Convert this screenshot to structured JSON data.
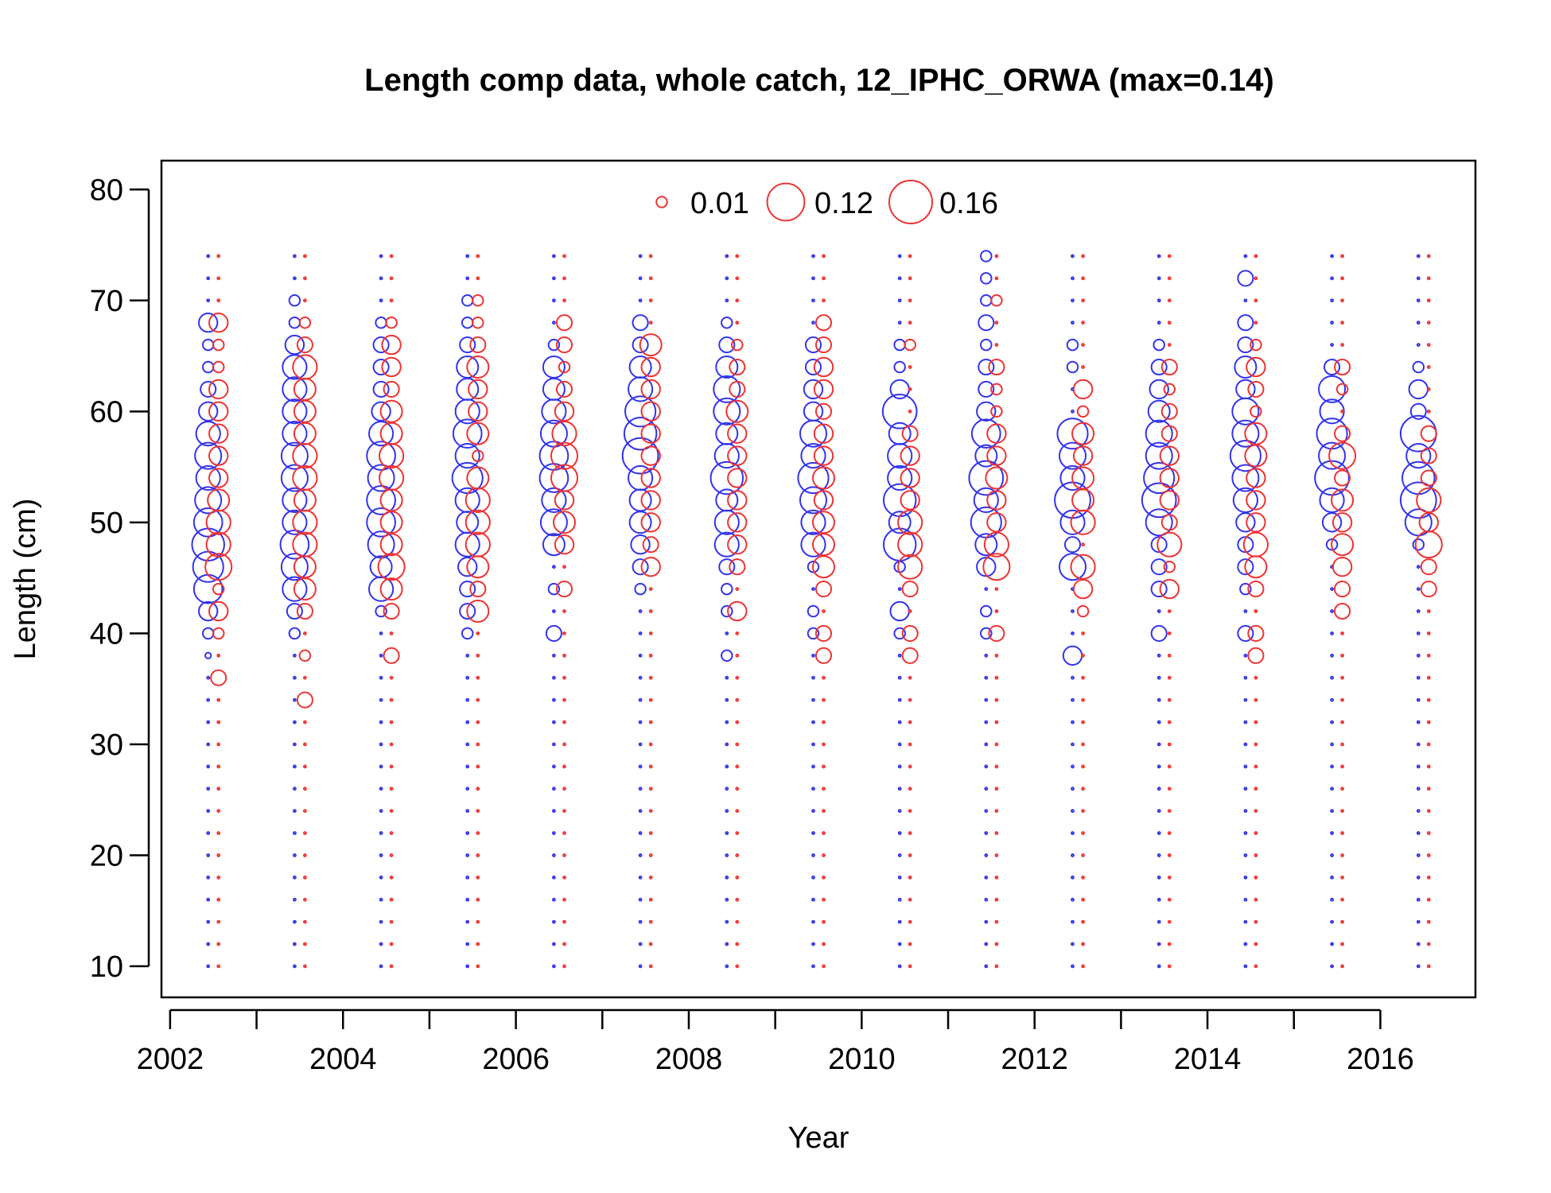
{
  "chart_data": {
    "type": "scatter",
    "title": "Length comp data, whole catch, 12_IPHC_ORWA (max=0.14)",
    "xlabel": "Year",
    "ylabel": "Length (cm)",
    "xlim": [
      2001.9,
      2017.1
    ],
    "ylim": [
      7.2,
      82.6
    ],
    "x_ticks": [
      2002,
      2004,
      2006,
      2008,
      2010,
      2012,
      2014,
      2016
    ],
    "x_minor_ticks": [
      2003,
      2005,
      2007,
      2009,
      2011,
      2013,
      2015
    ],
    "y_ticks": [
      10,
      20,
      30,
      40,
      50,
      60,
      70,
      80
    ],
    "grid": false,
    "legend_position": "top",
    "legend": [
      {
        "label": "0.01",
        "value": 0.01
      },
      {
        "label": "0.12",
        "value": 0.12
      },
      {
        "label": "0.16",
        "value": 0.16
      }
    ],
    "colors": {
      "observed": "#3333ee",
      "expected": "#ee3333"
    },
    "max_value": 0.14,
    "years": [
      2002,
      2003,
      2004,
      2005,
      2006,
      2007,
      2008,
      2009,
      2010,
      2011,
      2012,
      2013,
      2014,
      2015,
      2016
    ],
    "length_bins": [
      10,
      12,
      14,
      16,
      18,
      20,
      22,
      24,
      26,
      28,
      30,
      32,
      34,
      36,
      38,
      40,
      42,
      44,
      46,
      48,
      50,
      52,
      54,
      56,
      58,
      60,
      62,
      64,
      66,
      68,
      70,
      72,
      74
    ],
    "series": [
      {
        "name": "observed",
        "color": "#3333ee",
        "values": [
          [
            0,
            0,
            0,
            0,
            0,
            0,
            0,
            0,
            0,
            0,
            0,
            0,
            0,
            0,
            0.003,
            0.01,
            0.03,
            0.07,
            0.08,
            0.09,
            0.07,
            0.06,
            0.05,
            0.06,
            0.05,
            0.03,
            0.02,
            0.01,
            0.01,
            0.03,
            0,
            0,
            0
          ],
          [
            0,
            0,
            0,
            0,
            0,
            0,
            0,
            0,
            0,
            0,
            0,
            0,
            0,
            0,
            0,
            0.01,
            0.02,
            0.05,
            0.06,
            0.07,
            0.05,
            0.05,
            0.06,
            0.06,
            0.05,
            0.05,
            0.05,
            0.05,
            0.03,
            0.01,
            0.01,
            0,
            0
          ],
          [
            0,
            0,
            0,
            0,
            0,
            0,
            0,
            0,
            0,
            0,
            0,
            0,
            0,
            0,
            0,
            0,
            0.01,
            0.05,
            0.04,
            0.06,
            0.07,
            0.07,
            0.06,
            0.07,
            0.05,
            0.03,
            0.02,
            0.02,
            0.02,
            0.01,
            0,
            0,
            0
          ],
          [
            0,
            0,
            0,
            0,
            0,
            0,
            0,
            0,
            0,
            0,
            0,
            0,
            0,
            0,
            0,
            0.01,
            0.02,
            0.02,
            0.03,
            0.05,
            0.04,
            0.05,
            0.08,
            0.05,
            0.07,
            0.05,
            0.04,
            0.04,
            0.02,
            0.01,
            0.01,
            0,
            0
          ],
          [
            0,
            0,
            0,
            0,
            0,
            0,
            0,
            0,
            0,
            0,
            0,
            0,
            0,
            0,
            0,
            0.02,
            0,
            0.01,
            0,
            0.04,
            0.06,
            0.05,
            0.07,
            0.07,
            0.06,
            0.05,
            0.04,
            0.04,
            0.01,
            0,
            0,
            0,
            0
          ],
          [
            0,
            0,
            0,
            0,
            0,
            0,
            0,
            0,
            0,
            0,
            0,
            0,
            0,
            0,
            0,
            0,
            0,
            0.01,
            0.02,
            0.03,
            0.04,
            0.04,
            0.05,
            0.11,
            0.09,
            0.08,
            0.05,
            0.04,
            0.02,
            0.02,
            0,
            0,
            0
          ],
          [
            0,
            0,
            0,
            0,
            0,
            0,
            0,
            0,
            0,
            0,
            0,
            0,
            0,
            0,
            0.01,
            0,
            0.01,
            0.01,
            0.02,
            0.05,
            0.05,
            0.04,
            0.09,
            0.05,
            0.04,
            0.06,
            0.06,
            0.04,
            0.02,
            0.01,
            0,
            0,
            0
          ],
          [
            0,
            0,
            0,
            0,
            0,
            0,
            0,
            0,
            0,
            0,
            0,
            0,
            0,
            0,
            0,
            0.01,
            0.01,
            0,
            0.01,
            0.05,
            0.05,
            0.06,
            0.08,
            0.05,
            0.06,
            0.03,
            0.03,
            0.02,
            0.02,
            0,
            0,
            0,
            0
          ],
          [
            0,
            0,
            0,
            0,
            0,
            0,
            0,
            0,
            0,
            0,
            0,
            0,
            0,
            0,
            0,
            0.01,
            0.03,
            0,
            0.01,
            0.09,
            0.04,
            0.09,
            0.05,
            0.05,
            0.04,
            0.1,
            0.03,
            0.01,
            0.01,
            0,
            0,
            0,
            0
          ],
          [
            0,
            0,
            0,
            0,
            0,
            0,
            0,
            0,
            0,
            0,
            0,
            0,
            0,
            0,
            0,
            0.01,
            0.01,
            0,
            0.03,
            0.04,
            0.08,
            0.05,
            0.1,
            0.04,
            0.07,
            0.03,
            0.02,
            0.02,
            0.01,
            0.02,
            0.01,
            0.01,
            0.01
          ],
          [
            0,
            0,
            0,
            0,
            0,
            0,
            0,
            0,
            0,
            0,
            0,
            0,
            0,
            0,
            0.03,
            0,
            0,
            0,
            0.06,
            0.02,
            0.05,
            0.11,
            0.05,
            0.06,
            0.08,
            0,
            0,
            0.01,
            0.01,
            0,
            0,
            0,
            0
          ],
          [
            0,
            0,
            0,
            0,
            0,
            0,
            0,
            0,
            0,
            0,
            0,
            0,
            0,
            0,
            0,
            0.02,
            0,
            0.02,
            0.02,
            0.02,
            0.06,
            0.1,
            0.08,
            0.06,
            0.06,
            0.04,
            0.03,
            0.02,
            0.01,
            0,
            0,
            0,
            0
          ],
          [
            0,
            0,
            0,
            0,
            0,
            0,
            0,
            0,
            0,
            0,
            0,
            0,
            0,
            0,
            0,
            0.02,
            0,
            0.01,
            0.02,
            0.02,
            0.03,
            0.05,
            0.06,
            0.08,
            0.06,
            0.06,
            0.03,
            0.04,
            0.02,
            0.02,
            0,
            0.02,
            0
          ],
          [
            0,
            0,
            0,
            0,
            0,
            0,
            0,
            0,
            0,
            0,
            0,
            0,
            0,
            0,
            0,
            0,
            0,
            0,
            0,
            0.01,
            0.03,
            0.05,
            0.1,
            0.06,
            0.08,
            0.05,
            0.06,
            0.02,
            0,
            0,
            0,
            0,
            0
          ],
          [
            0,
            0,
            0,
            0,
            0,
            0,
            0,
            0,
            0,
            0,
            0,
            0,
            0,
            0,
            0,
            0,
            0,
            0,
            0,
            0.01,
            0.06,
            0.11,
            0.09,
            0.05,
            0.11,
            0.02,
            0.03,
            0.01,
            0,
            0,
            0,
            0,
            0
          ]
        ]
      },
      {
        "name": "expected",
        "color": "#ee3333",
        "values": [
          [
            0,
            0,
            0,
            0,
            0,
            0,
            0,
            0,
            0,
            0,
            0,
            0,
            0,
            0.02,
            0,
            0.01,
            0.03,
            0.01,
            0.06,
            0.05,
            0.05,
            0.04,
            0.03,
            0.03,
            0.03,
            0.03,
            0.03,
            0.01,
            0.01,
            0.03,
            0,
            0,
            0
          ],
          [
            0,
            0,
            0,
            0,
            0,
            0,
            0,
            0,
            0,
            0,
            0,
            0,
            0.02,
            0,
            0.01,
            0,
            0.02,
            0.04,
            0.04,
            0.05,
            0.05,
            0.04,
            0.05,
            0.05,
            0.04,
            0.04,
            0.04,
            0.05,
            0.02,
            0.01,
            0,
            0,
            0
          ],
          [
            0,
            0,
            0,
            0,
            0,
            0,
            0,
            0,
            0,
            0,
            0,
            0,
            0,
            0,
            0.02,
            0,
            0.02,
            0.04,
            0.06,
            0.04,
            0.04,
            0.04,
            0.05,
            0.05,
            0.04,
            0.04,
            0.02,
            0.03,
            0.03,
            0.01,
            0,
            0,
            0
          ],
          [
            0,
            0,
            0,
            0,
            0,
            0,
            0,
            0,
            0,
            0,
            0,
            0,
            0,
            0,
            0,
            0,
            0.04,
            0.02,
            0.04,
            0.05,
            0.05,
            0.05,
            0.04,
            0.01,
            0.04,
            0.03,
            0.03,
            0.04,
            0.02,
            0.01,
            0.01,
            0,
            0
          ],
          [
            0,
            0,
            0,
            0,
            0,
            0,
            0,
            0,
            0,
            0,
            0,
            0,
            0,
            0,
            0,
            0,
            0,
            0.02,
            0,
            0.03,
            0.04,
            0.03,
            0.06,
            0.06,
            0.05,
            0.03,
            0.02,
            0.01,
            0.02,
            0.02,
            0,
            0,
            0
          ],
          [
            0,
            0,
            0,
            0,
            0,
            0,
            0,
            0,
            0,
            0,
            0,
            0,
            0,
            0,
            0,
            0,
            0,
            0,
            0.03,
            0.02,
            0.03,
            0.03,
            0.03,
            0.03,
            0.03,
            0.03,
            0.03,
            0.03,
            0.04,
            0,
            0,
            0,
            0
          ],
          [
            0,
            0,
            0,
            0,
            0,
            0,
            0,
            0,
            0,
            0,
            0,
            0,
            0,
            0,
            0,
            0,
            0.03,
            0,
            0.02,
            0.03,
            0.03,
            0.03,
            0.03,
            0.03,
            0.03,
            0.04,
            0.02,
            0.02,
            0.01,
            0,
            0,
            0,
            0
          ],
          [
            0,
            0,
            0,
            0,
            0,
            0,
            0,
            0,
            0,
            0,
            0,
            0,
            0,
            0,
            0.02,
            0.02,
            0,
            0.02,
            0.04,
            0.04,
            0.04,
            0.03,
            0.04,
            0.03,
            0.03,
            0.02,
            0.03,
            0.03,
            0.02,
            0.02,
            0,
            0,
            0
          ],
          [
            0,
            0,
            0,
            0,
            0,
            0,
            0,
            0,
            0,
            0,
            0,
            0,
            0,
            0,
            0.02,
            0.02,
            0,
            0.02,
            0.05,
            0.05,
            0.05,
            0.03,
            0.03,
            0.03,
            0.02,
            0,
            0,
            0,
            0.01,
            0,
            0,
            0,
            0
          ],
          [
            0,
            0,
            0,
            0,
            0,
            0,
            0,
            0,
            0,
            0,
            0,
            0,
            0,
            0,
            0,
            0.02,
            0,
            0,
            0.06,
            0.05,
            0.03,
            0.03,
            0.04,
            0.03,
            0.03,
            0.01,
            0.01,
            0.02,
            0,
            0,
            0.01,
            0,
            0
          ],
          [
            0,
            0,
            0,
            0,
            0,
            0,
            0,
            0,
            0,
            0,
            0,
            0,
            0,
            0,
            0,
            0,
            0.01,
            0.03,
            0.05,
            0,
            0.05,
            0.04,
            0.04,
            0.03,
            0.04,
            0.01,
            0.03,
            0,
            0,
            0,
            0,
            0,
            0
          ],
          [
            0,
            0,
            0,
            0,
            0,
            0,
            0,
            0,
            0,
            0,
            0,
            0,
            0,
            0,
            0,
            0,
            0,
            0.03,
            0.01,
            0.05,
            0.02,
            0.03,
            0.03,
            0.03,
            0.02,
            0.02,
            0.01,
            0.02,
            0,
            0,
            0,
            0,
            0
          ],
          [
            0,
            0,
            0,
            0,
            0,
            0,
            0,
            0,
            0,
            0,
            0,
            0,
            0,
            0,
            0.02,
            0.02,
            0,
            0.02,
            0.04,
            0.05,
            0.03,
            0.03,
            0.03,
            0.04,
            0.04,
            0.01,
            0.02,
            0.03,
            0.01,
            0,
            0,
            0,
            0
          ],
          [
            0,
            0,
            0,
            0,
            0,
            0,
            0,
            0,
            0,
            0,
            0,
            0,
            0,
            0,
            0,
            0,
            0.02,
            0.02,
            0.03,
            0.04,
            0.03,
            0.04,
            0.02,
            0.06,
            0.02,
            0,
            0.01,
            0.02,
            0,
            0,
            0,
            0,
            0
          ],
          [
            0,
            0,
            0,
            0,
            0,
            0,
            0,
            0,
            0,
            0,
            0,
            0,
            0,
            0,
            0,
            0,
            0,
            0.02,
            0.02,
            0.06,
            0.03,
            0.05,
            0.02,
            0.02,
            0.02,
            0,
            0,
            0,
            0,
            0,
            0,
            0,
            0
          ]
        ]
      }
    ]
  }
}
